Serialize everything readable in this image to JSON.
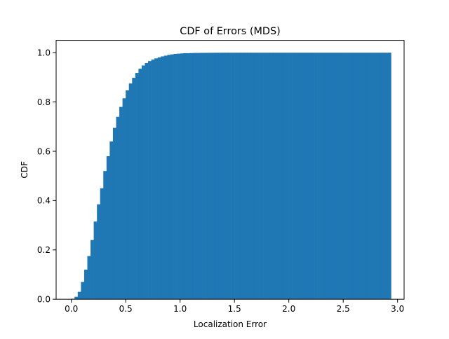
{
  "chart_data": {
    "type": "bar",
    "title": "CDF of Errors (MDS)",
    "xlabel": "Localization Error",
    "ylabel": "CDF",
    "xlim": [
      -0.14,
      3.06
    ],
    "ylim": [
      0,
      1.05
    ],
    "xticks": [
      {
        "value": 0.0,
        "label": "0.0"
      },
      {
        "value": 0.5,
        "label": "0.5"
      },
      {
        "value": 1.0,
        "label": "1.0"
      },
      {
        "value": 1.5,
        "label": "1.5"
      },
      {
        "value": 2.0,
        "label": "2.0"
      },
      {
        "value": 2.5,
        "label": "2.5"
      },
      {
        "value": 3.0,
        "label": "3.0"
      }
    ],
    "yticks": [
      {
        "value": 0.0,
        "label": "0.0"
      },
      {
        "value": 0.2,
        "label": "0.2"
      },
      {
        "value": 0.4,
        "label": "0.4"
      },
      {
        "value": 0.6,
        "label": "0.6"
      },
      {
        "value": 0.8,
        "label": "0.8"
      },
      {
        "value": 1.0,
        "label": "1.0"
      }
    ],
    "grid": false,
    "legend": "none",
    "bar_color": "#1f77b4",
    "x_start": 0.0,
    "x_end": 2.94,
    "cumulative_values": [
      0.002,
      0.01,
      0.03,
      0.07,
      0.12,
      0.175,
      0.24,
      0.315,
      0.385,
      0.45,
      0.52,
      0.58,
      0.64,
      0.695,
      0.74,
      0.78,
      0.815,
      0.847,
      0.875,
      0.898,
      0.918,
      0.935,
      0.948,
      0.958,
      0.966,
      0.972,
      0.977,
      0.981,
      0.985,
      0.988,
      0.991,
      0.993,
      0.995,
      0.996,
      0.997,
      0.998,
      0.998,
      0.9985,
      0.999,
      0.999,
      0.9992,
      0.9993,
      0.9994,
      0.9995,
      0.9996,
      0.9997,
      0.9998,
      0.9999,
      0.9999,
      0.9999,
      0.9999,
      0.9999,
      0.9999,
      0.9999,
      0.9999,
      0.9999,
      0.9999,
      0.9999,
      0.9999,
      0.9999,
      0.9999,
      0.9999,
      0.9999,
      0.9999,
      0.9999,
      0.9999,
      0.9999,
      0.9999,
      0.9999,
      0.9999,
      0.9999,
      0.9999,
      0.9999,
      0.9999,
      0.9999,
      0.9999,
      0.9999,
      0.9999,
      0.9999,
      0.9999,
      0.9999,
      0.9999,
      0.9999,
      0.9999,
      0.9999,
      0.9999,
      0.9999,
      0.9999,
      0.9999,
      0.9999,
      0.9999,
      0.9999,
      0.9999,
      0.9999,
      0.9999,
      0.9999,
      0.9999,
      0.9999,
      0.9999,
      1.0
    ]
  }
}
